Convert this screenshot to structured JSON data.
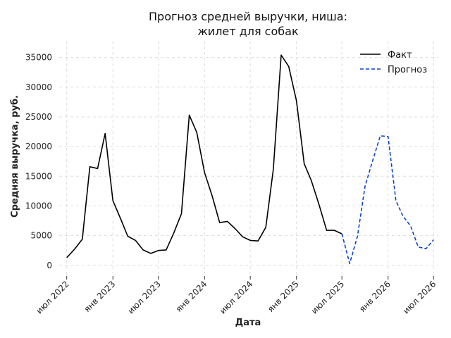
{
  "chart_data": {
    "type": "line",
    "title": [
      "Прогноз средней выручки, ниша:",
      "жилет для собак"
    ],
    "xlabel": "Дата",
    "ylabel": "Средняя выручка, руб.",
    "ylim": [
      -1800,
      37800
    ],
    "yticks": [
      0,
      5000,
      10000,
      15000,
      20000,
      25000,
      30000,
      35000
    ],
    "xlim": [
      "2022-06-01",
      "2026-07-20"
    ],
    "xticks": [
      {
        "date": "2022-07-01",
        "label": "июл 2022"
      },
      {
        "date": "2023-01-01",
        "label": "янв 2023"
      },
      {
        "date": "2023-07-01",
        "label": "июл 2023"
      },
      {
        "date": "2024-01-01",
        "label": "янв 2024"
      },
      {
        "date": "2024-07-01",
        "label": "июл 2024"
      },
      {
        "date": "2025-01-01",
        "label": "янв 2025"
      },
      {
        "date": "2025-07-01",
        "label": "июл 2025"
      },
      {
        "date": "2026-01-01",
        "label": "янв 2026"
      },
      {
        "date": "2026-07-01",
        "label": "июл 2026"
      }
    ],
    "grid": true,
    "legend_position": "top-right",
    "series": [
      {
        "name": "Факт",
        "color": "#000000",
        "style": "solid",
        "x": [
          "2022-07-01",
          "2022-08-01",
          "2022-09-01",
          "2022-10-01",
          "2022-11-01",
          "2022-12-01",
          "2023-01-01",
          "2023-02-01",
          "2023-03-01",
          "2023-04-01",
          "2023-05-01",
          "2023-06-01",
          "2023-07-01",
          "2023-08-01",
          "2023-09-01",
          "2023-10-01",
          "2023-11-01",
          "2023-12-01",
          "2024-01-01",
          "2024-02-01",
          "2024-03-01",
          "2024-04-01",
          "2024-05-01",
          "2024-06-01",
          "2024-07-01",
          "2024-08-01",
          "2024-09-01",
          "2024-10-01",
          "2024-11-01",
          "2024-12-01",
          "2025-01-01",
          "2025-02-01",
          "2025-03-01",
          "2025-04-01",
          "2025-05-01",
          "2025-06-01",
          "2025-07-01"
        ],
        "y": [
          1300,
          2700,
          4400,
          16600,
          16300,
          22200,
          10900,
          7800,
          4900,
          4200,
          2600,
          2000,
          2500,
          2600,
          5500,
          8700,
          25300,
          22400,
          15600,
          11600,
          7200,
          7400,
          6200,
          4800,
          4200,
          4100,
          6400,
          16200,
          35400,
          33500,
          27700,
          17100,
          14300,
          10200,
          5900,
          5900,
          5300
        ]
      },
      {
        "name": "Прогноз",
        "color": "#0b43cc",
        "style": "dashed",
        "x": [
          "2025-07-01",
          "2025-08-01",
          "2025-09-01",
          "2025-10-01",
          "2025-11-01",
          "2025-12-01",
          "2026-01-01",
          "2026-02-01",
          "2026-03-01",
          "2026-04-01",
          "2026-05-01",
          "2026-06-01",
          "2026-07-01"
        ],
        "y": [
          5300,
          300,
          4900,
          13300,
          17700,
          21800,
          21700,
          10900,
          8300,
          6600,
          3100,
          2800,
          4300
        ]
      }
    ]
  }
}
